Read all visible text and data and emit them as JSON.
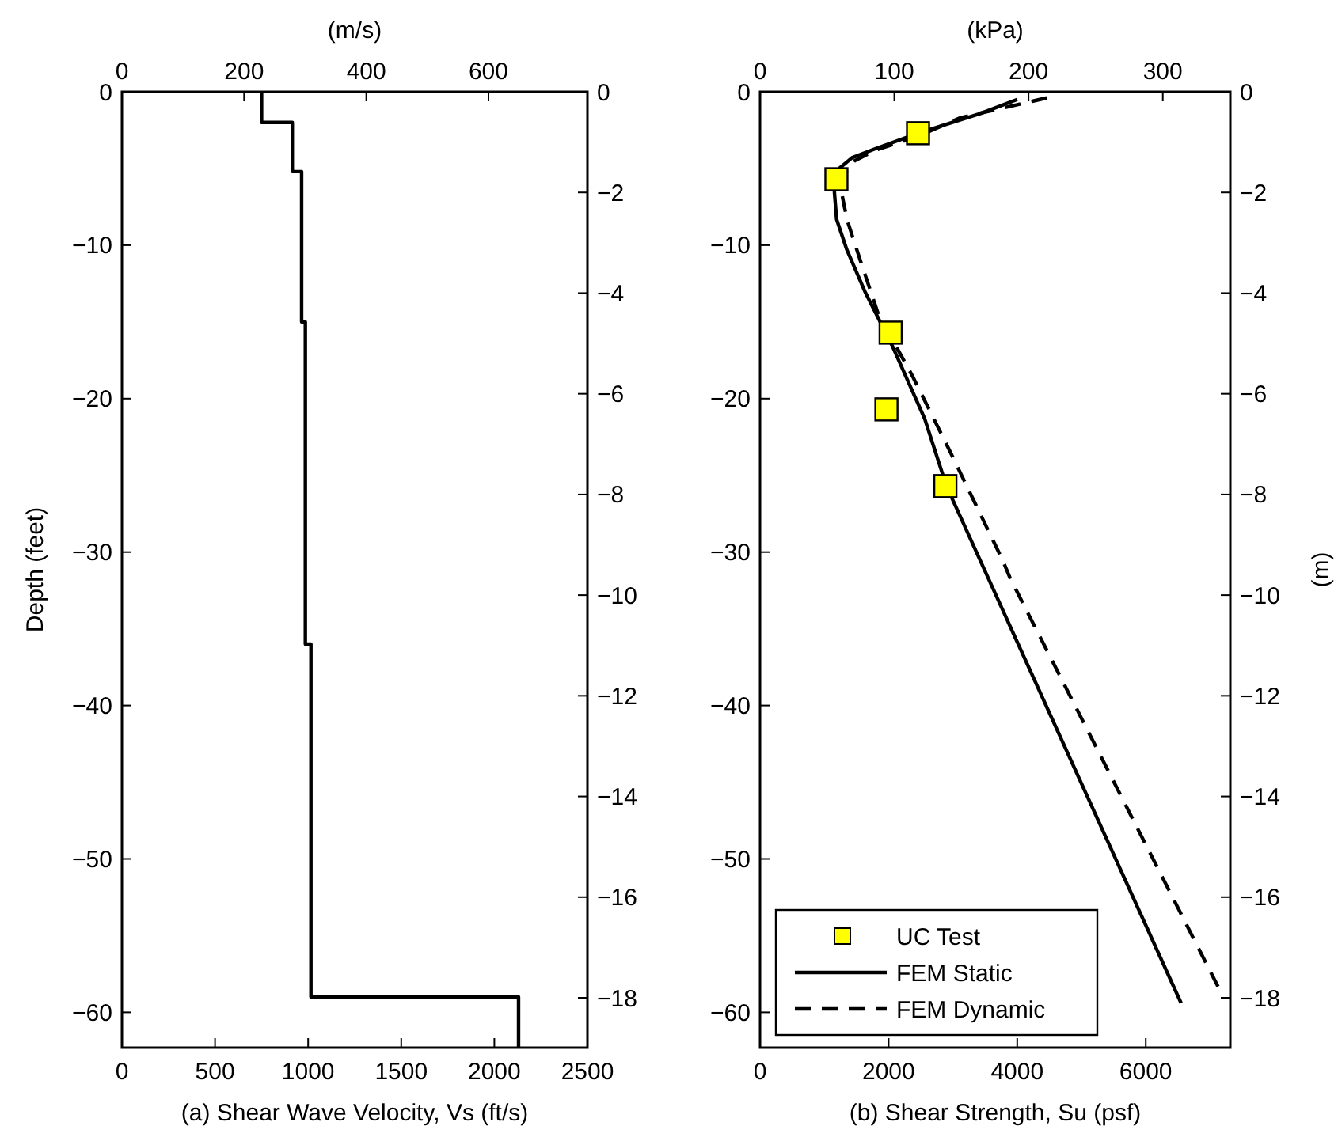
{
  "chart_data": [
    {
      "type": "line",
      "xlabel": "(a) Shear Wave Velocity, Vs (ft/s)",
      "ylabel": "Depth (feet)",
      "x2label": "(m/s)",
      "xlim": [
        0,
        2500
      ],
      "xticks": [
        0,
        500,
        1000,
        1500,
        2000,
        2500
      ],
      "ylim": [
        -62.3,
        0
      ],
      "yticks": [
        -60,
        -50,
        -40,
        -30,
        -20,
        -10,
        0
      ],
      "x2lim": [
        0,
        762
      ],
      "x2ticks": [
        0,
        200,
        400,
        600
      ],
      "y2lim": [
        -18.99,
        0
      ],
      "y2ticks": [
        -18,
        -16,
        -14,
        -12,
        -10,
        -8,
        -6,
        -4,
        -2,
        0
      ],
      "grid": false,
      "legend": false,
      "series": [
        {
          "color": "#000000",
          "line_style": "solid",
          "x": [
            750,
            750,
            915,
            915,
            965,
            965,
            985,
            985,
            1015,
            1015,
            2130,
            2130
          ],
          "values": [
            0,
            -2,
            -2,
            -5.2,
            -5.2,
            -15,
            -15,
            -36,
            -36,
            -59,
            -59,
            -62.3
          ]
        }
      ]
    },
    {
      "type": "line",
      "xlabel": "(b) Shear Strength, Su (psf)",
      "y2label": "(m)",
      "x2label": "(kPa)",
      "xlim": [
        0,
        7315
      ],
      "xticks": [
        0,
        2000,
        4000,
        6000
      ],
      "ylim": [
        -62.3,
        0
      ],
      "yticks": [
        -60,
        -50,
        -40,
        -30,
        -20,
        -10,
        0
      ],
      "x2lim": [
        0,
        350.3
      ],
      "x2ticks": [
        0,
        100,
        200,
        300
      ],
      "y2lim": [
        -18.99,
        0
      ],
      "y2ticks": [
        -18,
        -16,
        -14,
        -12,
        -10,
        -8,
        -6,
        -4,
        -2,
        0
      ],
      "grid": false,
      "legend": "bottom left",
      "series": [
        {
          "name": "UC Test",
          "type": "scatter",
          "marker": "square",
          "color": "#ffff00",
          "x": [
            2457,
            1188,
            2031,
            1966,
            2883
          ],
          "values": [
            -2.7,
            -5.7,
            -15.7,
            -20.7,
            -25.7
          ]
        },
        {
          "name": "FEM Static",
          "color": "#000000",
          "line_style": "solid",
          "x": [
            4000,
            3440,
            2460,
            1800,
            1430,
            1230,
            1150,
            1190,
            1350,
            1640,
            2050,
            2560,
            2900,
            6550
          ],
          "values": [
            -0.5,
            -1.4,
            -2.7,
            -3.7,
            -4.3,
            -5.0,
            -6.2,
            -8.3,
            -10.3,
            -13.1,
            -16.5,
            -21.3,
            -25.7,
            -59.4
          ]
        },
        {
          "name": "FEM Dynamic",
          "color": "#000000",
          "line_style": "dashed",
          "x": [
            4460,
            3110,
            2460,
            1800,
            1470,
            1310,
            1270,
            1350,
            1560,
            1840,
            2380,
            2950,
            3770,
            3890,
            7170
          ],
          "values": [
            -0.4,
            -1.7,
            -2.9,
            -3.8,
            -4.5,
            -5.4,
            -6.6,
            -8.3,
            -11.0,
            -14.5,
            -18.6,
            -23.4,
            -30.5,
            -31.7,
            -58.7
          ]
        }
      ]
    }
  ]
}
